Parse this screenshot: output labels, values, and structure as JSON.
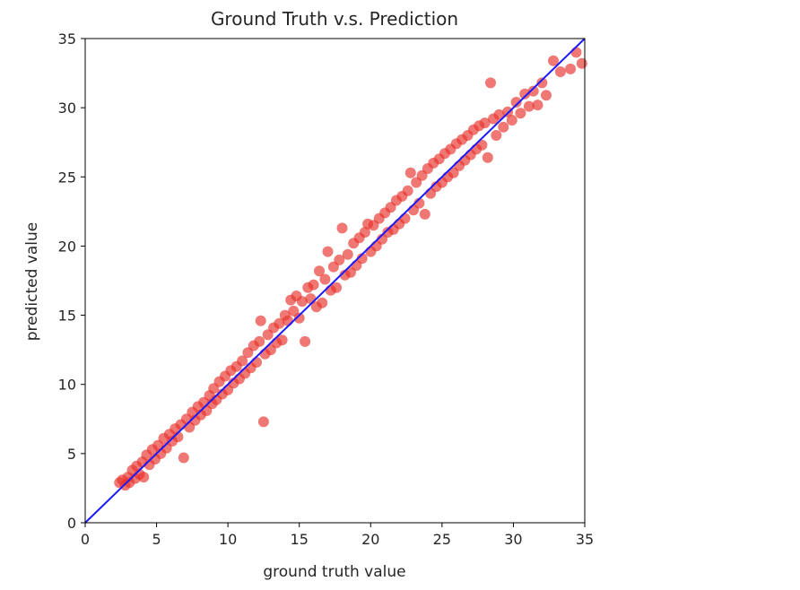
{
  "chart_data": {
    "type": "scatter",
    "title": "Ground Truth v.s. Prediction",
    "xlabel": "ground truth value",
    "ylabel": "predicted value",
    "xlim": [
      0,
      35
    ],
    "ylim": [
      0,
      35
    ],
    "xticks": [
      0,
      5,
      10,
      15,
      20,
      25,
      30,
      35
    ],
    "yticks": [
      0,
      5,
      10,
      15,
      20,
      25,
      30,
      35
    ],
    "grid": false,
    "legend": null,
    "point_color": "#e8302a",
    "line_color": "#1a1aff",
    "reference_line": {
      "name": "y = x",
      "x": [
        0,
        35
      ],
      "y": [
        0,
        35
      ]
    },
    "series": [
      {
        "points": [
          [
            2.4,
            2.9
          ],
          [
            2.6,
            3.1
          ],
          [
            2.8,
            2.7
          ],
          [
            3.0,
            3.3
          ],
          [
            3.1,
            2.9
          ],
          [
            3.3,
            3.8
          ],
          [
            3.5,
            3.2
          ],
          [
            3.6,
            4.1
          ],
          [
            3.8,
            3.5
          ],
          [
            4.0,
            4.4
          ],
          [
            4.1,
            3.3
          ],
          [
            4.3,
            4.9
          ],
          [
            4.5,
            4.2
          ],
          [
            4.7,
            5.3
          ],
          [
            4.9,
            4.6
          ],
          [
            5.1,
            5.6
          ],
          [
            5.3,
            5.0
          ],
          [
            5.5,
            6.1
          ],
          [
            5.7,
            5.4
          ],
          [
            5.9,
            6.4
          ],
          [
            6.1,
            5.9
          ],
          [
            6.3,
            6.8
          ],
          [
            6.5,
            6.2
          ],
          [
            6.7,
            7.1
          ],
          [
            6.9,
            4.7
          ],
          [
            7.1,
            7.5
          ],
          [
            7.3,
            6.9
          ],
          [
            7.5,
            8.0
          ],
          [
            7.7,
            7.4
          ],
          [
            7.9,
            8.4
          ],
          [
            8.1,
            7.8
          ],
          [
            8.3,
            8.7
          ],
          [
            8.5,
            8.1
          ],
          [
            8.7,
            9.2
          ],
          [
            8.9,
            8.6
          ],
          [
            9.0,
            9.7
          ],
          [
            9.2,
            8.9
          ],
          [
            9.4,
            10.2
          ],
          [
            9.6,
            9.3
          ],
          [
            9.8,
            10.6
          ],
          [
            10.0,
            9.6
          ],
          [
            10.2,
            11.0
          ],
          [
            10.4,
            10.1
          ],
          [
            10.6,
            11.3
          ],
          [
            10.8,
            10.4
          ],
          [
            11.0,
            11.7
          ],
          [
            11.2,
            10.8
          ],
          [
            11.4,
            12.3
          ],
          [
            11.6,
            11.2
          ],
          [
            11.8,
            12.8
          ],
          [
            12.0,
            11.6
          ],
          [
            12.2,
            13.1
          ],
          [
            12.3,
            14.6
          ],
          [
            12.5,
            7.3
          ],
          [
            12.6,
            12.2
          ],
          [
            12.8,
            13.6
          ],
          [
            13.0,
            12.5
          ],
          [
            13.2,
            14.1
          ],
          [
            13.4,
            13.0
          ],
          [
            13.6,
            14.4
          ],
          [
            13.8,
            13.2
          ],
          [
            14.0,
            15.0
          ],
          [
            14.2,
            14.6
          ],
          [
            14.4,
            16.1
          ],
          [
            14.6,
            15.3
          ],
          [
            14.8,
            16.4
          ],
          [
            15.0,
            14.8
          ],
          [
            15.2,
            16.0
          ],
          [
            15.4,
            13.1
          ],
          [
            15.6,
            17.0
          ],
          [
            15.8,
            16.2
          ],
          [
            16.0,
            17.2
          ],
          [
            16.2,
            15.6
          ],
          [
            16.4,
            18.2
          ],
          [
            16.6,
            15.9
          ],
          [
            16.8,
            17.6
          ],
          [
            17.0,
            19.6
          ],
          [
            17.2,
            16.8
          ],
          [
            17.4,
            18.5
          ],
          [
            17.6,
            17.0
          ],
          [
            17.8,
            19.0
          ],
          [
            18.0,
            21.3
          ],
          [
            18.2,
            17.9
          ],
          [
            18.4,
            19.4
          ],
          [
            18.6,
            18.1
          ],
          [
            18.8,
            20.2
          ],
          [
            19.0,
            18.6
          ],
          [
            19.2,
            20.6
          ],
          [
            19.4,
            19.1
          ],
          [
            19.6,
            21.0
          ],
          [
            19.8,
            21.6
          ],
          [
            20.0,
            19.6
          ],
          [
            20.2,
            21.5
          ],
          [
            20.4,
            20.0
          ],
          [
            20.6,
            22.0
          ],
          [
            20.8,
            20.5
          ],
          [
            21.0,
            22.4
          ],
          [
            21.2,
            21.0
          ],
          [
            21.4,
            22.8
          ],
          [
            21.6,
            21.2
          ],
          [
            21.8,
            23.3
          ],
          [
            22.0,
            21.6
          ],
          [
            22.2,
            23.6
          ],
          [
            22.4,
            22.0
          ],
          [
            22.6,
            24.0
          ],
          [
            22.8,
            25.3
          ],
          [
            23.0,
            22.6
          ],
          [
            23.2,
            24.6
          ],
          [
            23.4,
            23.1
          ],
          [
            23.6,
            25.1
          ],
          [
            23.8,
            22.3
          ],
          [
            24.0,
            25.6
          ],
          [
            24.2,
            23.8
          ],
          [
            24.4,
            26.0
          ],
          [
            24.6,
            24.3
          ],
          [
            24.8,
            26.3
          ],
          [
            25.0,
            24.6
          ],
          [
            25.2,
            26.7
          ],
          [
            25.4,
            25.0
          ],
          [
            25.6,
            27.0
          ],
          [
            25.8,
            25.3
          ],
          [
            26.0,
            27.4
          ],
          [
            26.2,
            25.8
          ],
          [
            26.4,
            27.7
          ],
          [
            26.6,
            26.2
          ],
          [
            26.8,
            28.0
          ],
          [
            27.0,
            26.6
          ],
          [
            27.2,
            28.4
          ],
          [
            27.4,
            27.0
          ],
          [
            27.6,
            28.7
          ],
          [
            27.8,
            27.3
          ],
          [
            28.0,
            28.9
          ],
          [
            28.2,
            26.4
          ],
          [
            28.4,
            31.8
          ],
          [
            28.6,
            29.2
          ],
          [
            28.8,
            28.0
          ],
          [
            29.0,
            29.5
          ],
          [
            29.3,
            28.6
          ],
          [
            29.6,
            29.7
          ],
          [
            29.9,
            29.1
          ],
          [
            30.2,
            30.4
          ],
          [
            30.5,
            29.6
          ],
          [
            30.8,
            31.0
          ],
          [
            31.1,
            30.1
          ],
          [
            31.4,
            31.2
          ],
          [
            31.7,
            30.2
          ],
          [
            32.0,
            31.8
          ],
          [
            32.3,
            30.9
          ],
          [
            32.8,
            33.4
          ],
          [
            33.3,
            32.6
          ],
          [
            34.0,
            32.8
          ],
          [
            34.4,
            34.0
          ],
          [
            34.8,
            33.2
          ]
        ]
      }
    ]
  }
}
